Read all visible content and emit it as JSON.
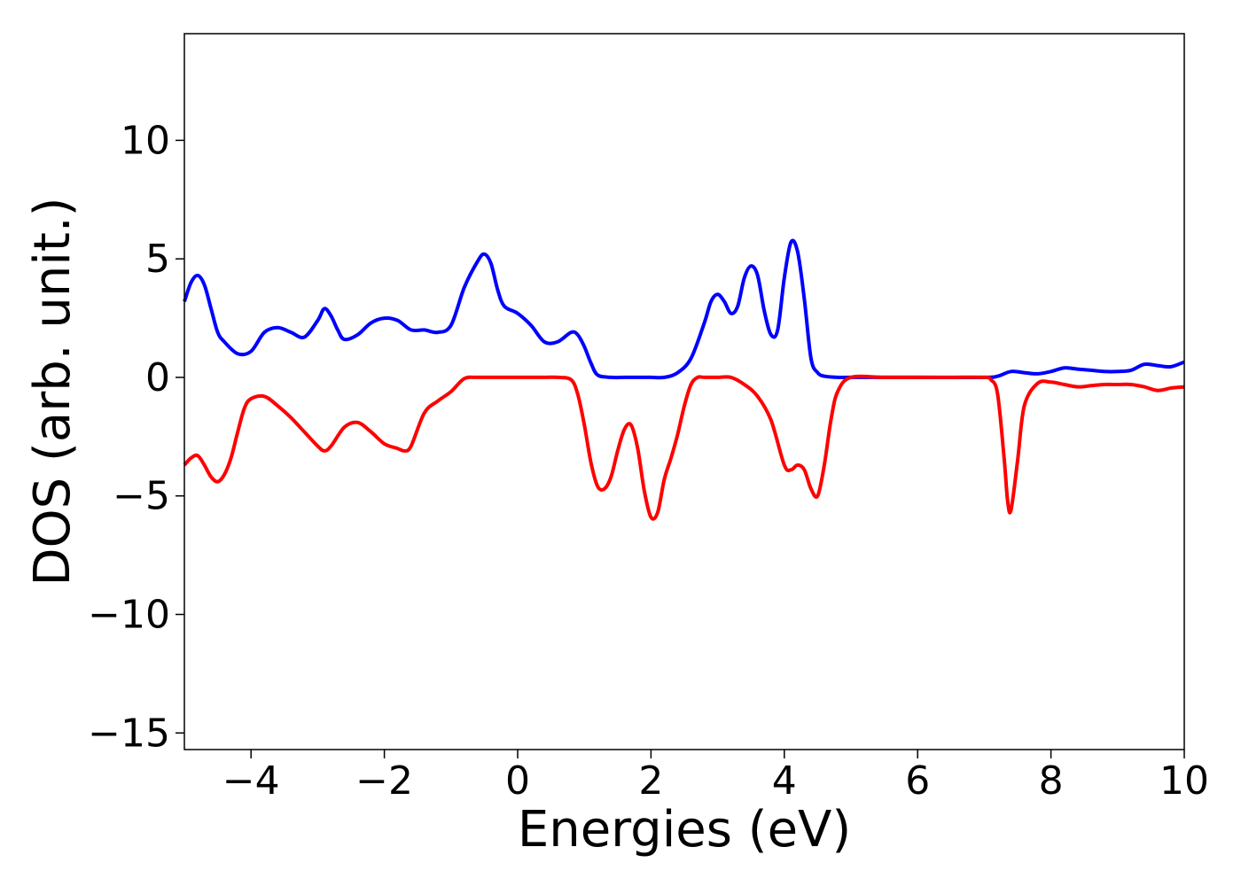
{
  "chart_data": {
    "type": "line",
    "xlabel": "Energies (eV)",
    "ylabel": "DOS (arb. unit.)",
    "xlim": [
      -5,
      10
    ],
    "ylim": [
      -15.7,
      14.5
    ],
    "xticks": [
      -4,
      -2,
      0,
      2,
      4,
      6,
      8,
      10
    ],
    "xtick_labels": [
      "−4",
      "−2",
      "0",
      "2",
      "4",
      "6",
      "8",
      "10"
    ],
    "yticks": [
      -15,
      -10,
      -5,
      0,
      5,
      10
    ],
    "ytick_labels": [
      "−15",
      "−10",
      "−5",
      "0",
      "5",
      "10"
    ],
    "grid": false,
    "series": [
      {
        "color": "#0000ff",
        "x": [
          -5.0,
          -4.9,
          -4.8,
          -4.7,
          -4.6,
          -4.5,
          -4.4,
          -4.2,
          -4.0,
          -3.8,
          -3.6,
          -3.4,
          -3.2,
          -3.0,
          -2.9,
          -2.8,
          -2.7,
          -2.6,
          -2.4,
          -2.2,
          -2.0,
          -1.8,
          -1.6,
          -1.4,
          -1.2,
          -1.0,
          -0.8,
          -0.6,
          -0.5,
          -0.4,
          -0.3,
          -0.2,
          0.0,
          0.2,
          0.4,
          0.6,
          0.8,
          0.9,
          1.0,
          1.1,
          1.2,
          1.4,
          1.6,
          1.8,
          2.0,
          2.2,
          2.4,
          2.6,
          2.8,
          2.9,
          3.0,
          3.1,
          3.2,
          3.3,
          3.4,
          3.5,
          3.6,
          3.7,
          3.8,
          3.9,
          4.0,
          4.1,
          4.2,
          4.3,
          4.4,
          4.5,
          4.6,
          4.8,
          5.0,
          6.0,
          7.0,
          7.2,
          7.4,
          7.6,
          7.8,
          8.0,
          8.2,
          8.4,
          8.6,
          8.8,
          9.0,
          9.2,
          9.4,
          9.6,
          9.8,
          10.0
        ],
        "y": [
          3.2,
          4.0,
          4.3,
          3.9,
          2.9,
          1.9,
          1.5,
          1.0,
          1.1,
          1.9,
          2.1,
          1.9,
          1.7,
          2.4,
          2.9,
          2.6,
          2.0,
          1.6,
          1.8,
          2.3,
          2.5,
          2.4,
          2.0,
          2.0,
          1.9,
          2.2,
          3.8,
          4.9,
          5.2,
          4.8,
          3.7,
          3.0,
          2.7,
          2.2,
          1.5,
          1.5,
          1.9,
          1.8,
          1.3,
          0.6,
          0.1,
          0.0,
          0.0,
          0.0,
          0.0,
          0.0,
          0.2,
          0.8,
          2.3,
          3.2,
          3.5,
          3.2,
          2.7,
          3.0,
          4.2,
          4.7,
          4.3,
          2.8,
          1.8,
          2.0,
          4.2,
          5.7,
          5.3,
          3.3,
          0.8,
          0.2,
          0.05,
          0.0,
          0.0,
          0.0,
          0.0,
          0.05,
          0.25,
          0.2,
          0.15,
          0.25,
          0.4,
          0.35,
          0.3,
          0.25,
          0.25,
          0.3,
          0.55,
          0.5,
          0.45,
          0.65
        ]
      },
      {
        "color": "#ff0000",
        "x": [
          -5.0,
          -4.9,
          -4.8,
          -4.7,
          -4.6,
          -4.5,
          -4.4,
          -4.3,
          -4.2,
          -4.1,
          -4.0,
          -3.8,
          -3.6,
          -3.4,
          -3.2,
          -3.0,
          -2.9,
          -2.8,
          -2.6,
          -2.4,
          -2.2,
          -2.0,
          -1.8,
          -1.7,
          -1.6,
          -1.4,
          -1.2,
          -1.0,
          -0.8,
          -0.6,
          -0.4,
          0.0,
          0.4,
          0.6,
          0.8,
          0.9,
          1.0,
          1.1,
          1.2,
          1.3,
          1.4,
          1.5,
          1.6,
          1.7,
          1.8,
          1.9,
          2.0,
          2.1,
          2.2,
          2.3,
          2.4,
          2.5,
          2.6,
          2.7,
          2.8,
          3.0,
          3.2,
          3.4,
          3.6,
          3.8,
          4.0,
          4.1,
          4.2,
          4.3,
          4.4,
          4.5,
          4.6,
          4.7,
          4.8,
          5.0,
          5.5,
          6.0,
          6.5,
          7.0,
          7.1,
          7.2,
          7.3,
          7.35,
          7.4,
          7.5,
          7.6,
          7.8,
          8.0,
          8.2,
          8.4,
          8.6,
          8.8,
          9.0,
          9.2,
          9.4,
          9.6,
          9.8,
          10.0
        ],
        "y": [
          -3.7,
          -3.4,
          -3.3,
          -3.7,
          -4.2,
          -4.4,
          -4.1,
          -3.4,
          -2.3,
          -1.3,
          -0.9,
          -0.8,
          -1.2,
          -1.7,
          -2.3,
          -2.9,
          -3.1,
          -2.9,
          -2.1,
          -1.9,
          -2.3,
          -2.8,
          -3.0,
          -3.1,
          -2.9,
          -1.5,
          -1.0,
          -0.6,
          -0.05,
          0.0,
          0.0,
          0.0,
          0.0,
          0.0,
          -0.1,
          -0.7,
          -2.0,
          -3.6,
          -4.6,
          -4.7,
          -4.2,
          -3.1,
          -2.2,
          -2.0,
          -3.0,
          -4.8,
          -5.9,
          -5.7,
          -4.3,
          -3.4,
          -2.4,
          -1.2,
          -0.3,
          0.0,
          0.0,
          0.0,
          0.0,
          -0.3,
          -0.8,
          -1.8,
          -3.7,
          -3.9,
          -3.7,
          -3.9,
          -4.7,
          -5.0,
          -3.7,
          -1.8,
          -0.6,
          0.0,
          0.0,
          0.0,
          0.0,
          0.0,
          -0.1,
          -0.7,
          -3.5,
          -5.2,
          -5.6,
          -3.5,
          -1.2,
          -0.25,
          -0.2,
          -0.3,
          -0.4,
          -0.35,
          -0.3,
          -0.3,
          -0.3,
          -0.4,
          -0.55,
          -0.45,
          -0.4
        ]
      }
    ]
  }
}
